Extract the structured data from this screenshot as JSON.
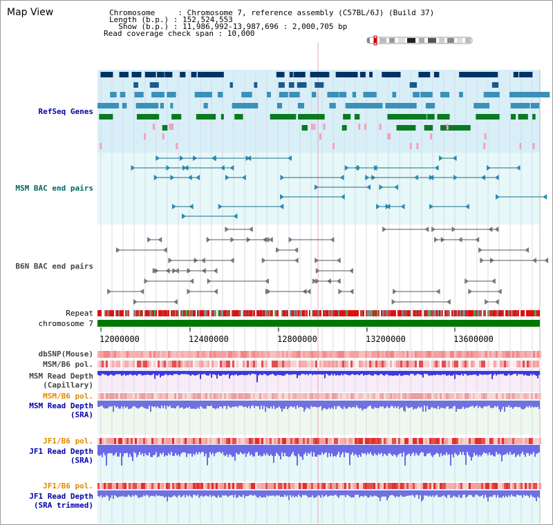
{
  "view_title": "Map View",
  "info": {
    "chromosome": "Chromosome     : Chromosome 7, reference assembly (C57BL/6J) (Build 37)",
    "length": "Length (b.p.) : 152,524,553",
    "show": "  Show (b.p.) : 11,986,992-13,987,696 : 2,000,705 bp",
    "coverage": "Read coverage check span : 10,000"
  },
  "tracks": {
    "refseq": "RefSeq Genes",
    "msm_bac": "MSM BAC end pairs",
    "b6n_bac": "B6N BAC end pairs",
    "repeat": "Repeat",
    "chromosome": "chromosome 7",
    "dbsnp": "dbSNP(Mouse)",
    "msm_b6_pol_1": "MSM/B6 pol.",
    "msm_read_depth_cap_1": "MSM Read Depth",
    "msm_read_depth_cap_2": "(Capillary)",
    "msm_b6_pol_2": "MSM/B6 pol.",
    "msm_read_depth_sra_1": "MSM Read Depth",
    "msm_read_depth_sra_2": "(SRA)",
    "jf1_b6_pol_1": "JF1/B6 pol.",
    "jf1_read_depth_sra_1": "JF1 Read Depth",
    "jf1_read_depth_sra_2": "(SRA)",
    "jf1_b6_pol_2": "JF1/B6 pol.",
    "jf1_read_depth_trim_1": "JF1 Read Depth",
    "jf1_read_depth_trim_2": "(SRA trimmed)"
  },
  "axis_ticks": [
    "12000000",
    "12400000",
    "12800000",
    "13200000",
    "13600000"
  ],
  "colors": {
    "label_blue": "#0000aa",
    "label_teal": "#006666",
    "label_gray": "#444444",
    "label_orange": "#e08a00",
    "refseq_bg": "#d8eff8",
    "msm_bac_bg": "#e6f8f8",
    "chromosome_bar": "#007700"
  }
}
